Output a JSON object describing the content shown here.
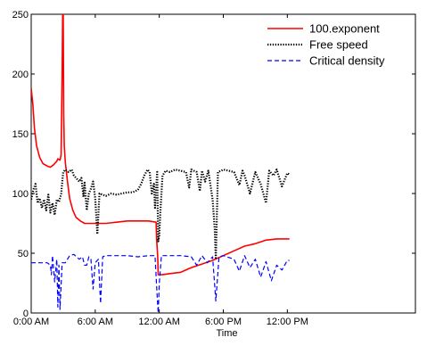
{
  "chart_data": {
    "type": "line",
    "xlabel": "Time",
    "ylabel": "",
    "xlim": [
      "0:00 AM",
      "12:00 PM (next day)"
    ],
    "xlim_hours": [
      0,
      36
    ],
    "ylim": [
      0,
      250
    ],
    "grid": false,
    "legend_position": "top-right",
    "x_ticks": [
      {
        "label": "0:00 AM",
        "hour": 0
      },
      {
        "label": "6:00 AM",
        "hour": 6
      },
      {
        "label": "12:00 AM",
        "hour": 12
      },
      {
        "label": "6:00 PM",
        "hour": 18
      },
      {
        "label": "12:00 PM",
        "hour": 24
      }
    ],
    "y_ticks": [
      {
        "label": "0",
        "value": 0
      },
      {
        "label": "50",
        "value": 50
      },
      {
        "label": "100",
        "value": 100
      },
      {
        "label": "150",
        "value": 150
      },
      {
        "label": "200",
        "value": 200
      },
      {
        "label": "250",
        "value": 250
      }
    ],
    "series": [
      {
        "name": "100.exponent",
        "color": "#ff0000",
        "style": "solid",
        "points": [
          [
            0.0,
            188
          ],
          [
            0.15,
            175
          ],
          [
            0.3,
            155
          ],
          [
            0.5,
            140
          ],
          [
            0.8,
            130
          ],
          [
            1.1,
            125
          ],
          [
            1.5,
            123
          ],
          [
            1.8,
            122
          ],
          [
            2.1,
            124
          ],
          [
            2.4,
            127
          ],
          [
            2.5,
            129
          ],
          [
            2.7,
            128
          ],
          [
            2.8,
            132
          ],
          [
            2.9,
            200
          ],
          [
            2.95,
            250
          ],
          [
            3.0,
            250
          ],
          [
            3.05,
            165
          ],
          [
            3.1,
            140
          ],
          [
            3.2,
            126
          ],
          [
            3.4,
            110
          ],
          [
            3.6,
            96
          ],
          [
            3.9,
            86
          ],
          [
            4.2,
            80
          ],
          [
            4.6,
            77
          ],
          [
            5.0,
            75
          ],
          [
            6.0,
            75
          ],
          [
            7.0,
            75
          ],
          [
            8.0,
            76
          ],
          [
            9.0,
            77
          ],
          [
            10.0,
            77
          ],
          [
            11.0,
            77
          ],
          [
            11.7,
            76
          ],
          [
            11.75,
            62
          ],
          [
            11.85,
            47
          ],
          [
            11.9,
            32
          ],
          [
            12.3,
            32
          ],
          [
            13.0,
            33
          ],
          [
            14.0,
            34
          ],
          [
            15.0,
            38
          ],
          [
            16.0,
            41
          ],
          [
            17.0,
            44
          ],
          [
            18.0,
            48
          ],
          [
            19.0,
            52
          ],
          [
            20.0,
            56
          ],
          [
            21.0,
            58
          ],
          [
            22.0,
            61
          ],
          [
            23.0,
            62
          ],
          [
            24.0,
            62
          ],
          [
            24.2,
            62
          ]
        ]
      },
      {
        "name": "Free speed",
        "color": "#000000",
        "style": "dotted",
        "points": [
          [
            0.0,
            95
          ],
          [
            0.2,
            103
          ],
          [
            0.4,
            108
          ],
          [
            0.6,
            92
          ],
          [
            0.8,
            96
          ],
          [
            1.0,
            88
          ],
          [
            1.2,
            95
          ],
          [
            1.4,
            86
          ],
          [
            1.6,
            99
          ],
          [
            1.8,
            84
          ],
          [
            2.0,
            92
          ],
          [
            2.2,
            82
          ],
          [
            2.4,
            95
          ],
          [
            2.6,
            93
          ],
          [
            2.8,
            99
          ],
          [
            3.0,
            118
          ],
          [
            3.2,
            120
          ],
          [
            3.5,
            118
          ],
          [
            3.8,
            120
          ],
          [
            4.0,
            115
          ],
          [
            4.3,
            112
          ],
          [
            4.5,
            110
          ],
          [
            4.7,
            113
          ],
          [
            4.9,
            97
          ],
          [
            5.0,
            109
          ],
          [
            5.2,
            86
          ],
          [
            5.4,
            100
          ],
          [
            5.6,
            104
          ],
          [
            5.8,
            110
          ],
          [
            6.0,
            96
          ],
          [
            6.2,
            66
          ],
          [
            6.4,
            100
          ],
          [
            6.7,
            99
          ],
          [
            7.0,
            98
          ],
          [
            7.5,
            100
          ],
          [
            8.0,
            99
          ],
          [
            8.5,
            100
          ],
          [
            9.0,
            101
          ],
          [
            9.5,
            101
          ],
          [
            10.0,
            103
          ],
          [
            10.3,
            108
          ],
          [
            10.6,
            115
          ],
          [
            10.9,
            120
          ],
          [
            11.1,
            118
          ],
          [
            11.3,
            100
          ],
          [
            11.5,
            108
          ],
          [
            11.6,
            88
          ],
          [
            11.8,
            118
          ],
          [
            11.9,
            60
          ],
          [
            12.0,
            65
          ],
          [
            12.1,
            85
          ],
          [
            12.3,
            115
          ],
          [
            12.6,
            119
          ],
          [
            13.0,
            118
          ],
          [
            13.5,
            120
          ],
          [
            14.0,
            119
          ],
          [
            14.5,
            118
          ],
          [
            14.8,
            105
          ],
          [
            15.0,
            120
          ],
          [
            15.5,
            118
          ],
          [
            15.8,
            102
          ],
          [
            16.0,
            119
          ],
          [
            16.3,
            110
          ],
          [
            16.6,
            119
          ],
          [
            17.0,
            95
          ],
          [
            17.2,
            70
          ],
          [
            17.3,
            45
          ],
          [
            17.5,
            118
          ],
          [
            17.8,
            119
          ],
          [
            18.0,
            120
          ],
          [
            18.5,
            119
          ],
          [
            19.0,
            118
          ],
          [
            19.5,
            107
          ],
          [
            19.8,
            119
          ],
          [
            20.0,
            115
          ],
          [
            20.5,
            100
          ],
          [
            21.0,
            118
          ],
          [
            21.5,
            108
          ],
          [
            22.0,
            92
          ],
          [
            22.3,
            119
          ],
          [
            22.7,
            115
          ],
          [
            23.0,
            120
          ],
          [
            23.5,
            106
          ],
          [
            24.0,
            117
          ],
          [
            24.2,
            116
          ]
        ]
      },
      {
        "name": "Critical density",
        "color": "#0000ff",
        "style": "dashed",
        "points": [
          [
            0.0,
            42
          ],
          [
            1.0,
            42
          ],
          [
            1.5,
            42
          ],
          [
            1.8,
            40
          ],
          [
            1.9,
            32
          ],
          [
            2.0,
            48
          ],
          [
            2.2,
            26
          ],
          [
            2.4,
            45
          ],
          [
            2.5,
            5
          ],
          [
            2.6,
            40
          ],
          [
            2.7,
            3
          ],
          [
            2.9,
            42
          ],
          [
            3.2,
            42
          ],
          [
            3.6,
            48
          ],
          [
            4.0,
            49
          ],
          [
            4.5,
            45
          ],
          [
            4.8,
            47
          ],
          [
            5.0,
            40
          ],
          [
            5.2,
            40
          ],
          [
            5.4,
            47
          ],
          [
            5.6,
            45
          ],
          [
            5.8,
            20
          ],
          [
            6.0,
            42
          ],
          [
            6.3,
            45
          ],
          [
            6.5,
            8
          ],
          [
            6.7,
            47
          ],
          [
            7.0,
            48
          ],
          [
            8.0,
            48
          ],
          [
            9.0,
            48
          ],
          [
            10.0,
            47
          ],
          [
            11.0,
            48
          ],
          [
            11.6,
            48
          ],
          [
            11.8,
            14
          ],
          [
            11.9,
            0
          ],
          [
            12.0,
            25
          ],
          [
            12.2,
            48
          ],
          [
            13.0,
            48
          ],
          [
            14.0,
            48
          ],
          [
            15.0,
            47
          ],
          [
            15.5,
            40
          ],
          [
            16.0,
            48
          ],
          [
            16.5,
            42
          ],
          [
            17.0,
            47
          ],
          [
            17.3,
            10
          ],
          [
            17.6,
            47
          ],
          [
            18.0,
            48
          ],
          [
            19.0,
            45
          ],
          [
            19.5,
            35
          ],
          [
            20.0,
            48
          ],
          [
            20.5,
            38
          ],
          [
            21.0,
            45
          ],
          [
            21.5,
            30
          ],
          [
            22.0,
            43
          ],
          [
            22.5,
            27
          ],
          [
            23.0,
            40
          ],
          [
            23.5,
            36
          ],
          [
            24.0,
            44
          ],
          [
            24.2,
            44
          ]
        ]
      }
    ]
  }
}
